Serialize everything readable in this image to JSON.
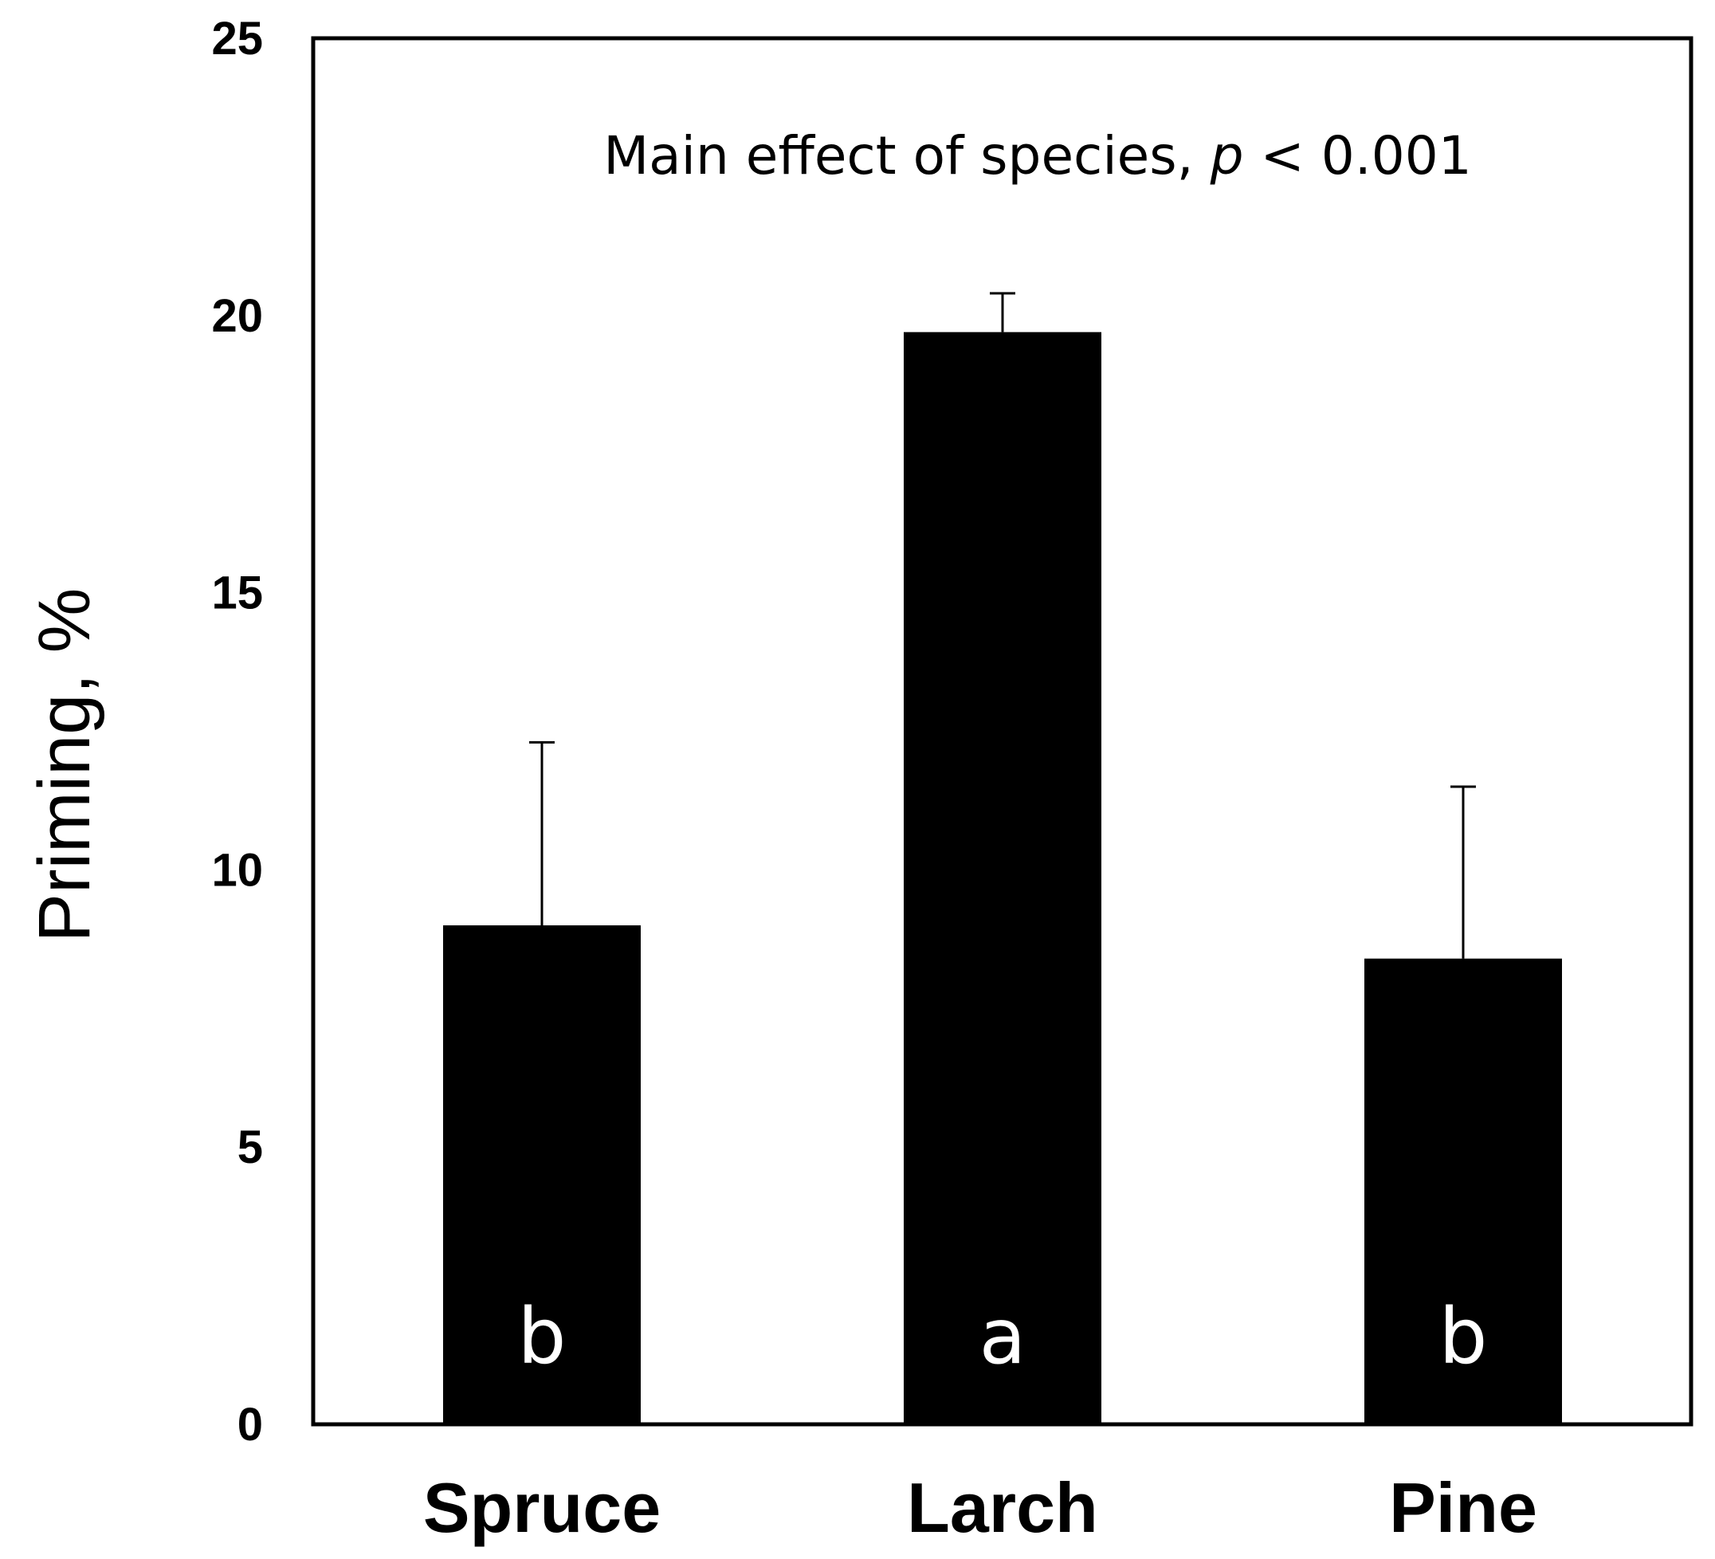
{
  "chart_data": {
    "type": "bar",
    "categories": [
      "Spruce",
      "Larch",
      "Pine"
    ],
    "values": [
      9.0,
      19.7,
      8.4
    ],
    "error_upper": [
      12.3,
      20.4,
      11.5
    ],
    "significance_letters": [
      "b",
      "a",
      "b"
    ],
    "title": "",
    "xlabel": "",
    "ylabel": "Priming, %",
    "ylim": [
      0,
      25
    ],
    "yticks": [
      "0",
      "5",
      "10",
      "15",
      "20",
      "25"
    ],
    "annotation": {
      "prefix": "Main effect of species, ",
      "italic": "p",
      "suffix": " < 0.001"
    },
    "bar_color": "#000000",
    "grid": false,
    "legend": "none"
  }
}
